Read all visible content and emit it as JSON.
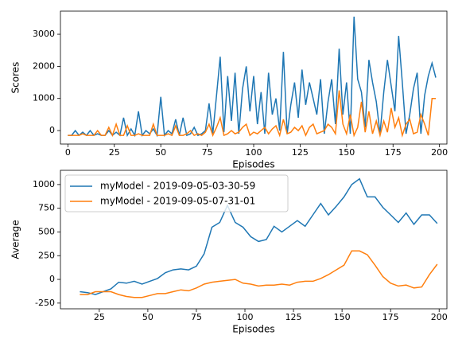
{
  "chart_data": [
    {
      "type": "line",
      "xlabel": "Episodes",
      "ylabel": "Scores",
      "xlim": [
        -4,
        204
      ],
      "ylim": [
        -420,
        3720
      ],
      "xticks": [
        0,
        25,
        50,
        75,
        100,
        125,
        150,
        175,
        200
      ],
      "yticks": [
        0,
        1000,
        2000,
        3000
      ],
      "x": [
        0,
        2,
        4,
        6,
        8,
        10,
        12,
        14,
        16,
        18,
        20,
        22,
        24,
        26,
        28,
        30,
        32,
        34,
        36,
        38,
        40,
        42,
        44,
        46,
        48,
        50,
        52,
        54,
        56,
        58,
        60,
        62,
        64,
        66,
        68,
        70,
        72,
        74,
        76,
        78,
        80,
        82,
        84,
        86,
        88,
        90,
        92,
        94,
        96,
        98,
        100,
        102,
        104,
        106,
        108,
        110,
        112,
        114,
        116,
        118,
        120,
        122,
        124,
        126,
        128,
        130,
        132,
        134,
        136,
        138,
        140,
        142,
        144,
        146,
        148,
        150,
        152,
        154,
        156,
        158,
        160,
        162,
        164,
        166,
        168,
        170,
        172,
        174,
        176,
        178,
        180,
        182,
        184,
        186,
        188,
        190,
        192,
        194,
        196,
        198
      ],
      "series": [
        {
          "color": "#1f77b4",
          "values": [
            -150,
            -150,
            0,
            -150,
            -50,
            -150,
            0,
            -150,
            -100,
            -150,
            -150,
            0,
            -150,
            -50,
            -150,
            400,
            -150,
            50,
            -150,
            600,
            -150,
            0,
            -100,
            50,
            -150,
            1050,
            -150,
            0,
            -100,
            350,
            -150,
            400,
            -150,
            -100,
            100,
            -150,
            -100,
            0,
            850,
            -100,
            1100,
            2300,
            -50,
            1700,
            300,
            1800,
            -100,
            1300,
            2000,
            600,
            1700,
            200,
            1200,
            -100,
            1800,
            500,
            1000,
            0,
            2450,
            -100,
            800,
            1500,
            400,
            1900,
            800,
            1500,
            1000,
            500,
            1600,
            -100,
            900,
            1600,
            200,
            2550,
            500,
            1500,
            -100,
            3550,
            1600,
            1200,
            100,
            2200,
            1500,
            900,
            -100,
            1200,
            2200,
            1400,
            600,
            2950,
            1500,
            -100,
            500,
            1300,
            1800,
            -100,
            1100,
            1700,
            2100,
            1650
          ]
        },
        {
          "color": "#ff7f0e",
          "values": [
            -150,
            -150,
            -150,
            -150,
            -100,
            -150,
            -150,
            -150,
            0,
            -150,
            -150,
            100,
            -150,
            200,
            -150,
            -150,
            150,
            -150,
            -150,
            -100,
            -150,
            -150,
            -150,
            200,
            -150,
            -150,
            -150,
            -100,
            -150,
            150,
            -150,
            -150,
            -100,
            0,
            -150,
            -100,
            -150,
            -50,
            200,
            -150,
            100,
            400,
            -150,
            -100,
            0,
            -100,
            -50,
            100,
            200,
            -150,
            -50,
            -100,
            0,
            100,
            -100,
            50,
            150,
            -150,
            350,
            -100,
            -50,
            100,
            0,
            150,
            -150,
            100,
            200,
            -100,
            -50,
            0,
            200,
            100,
            -100,
            1250,
            200,
            -100,
            500,
            -150,
            100,
            900,
            -50,
            600,
            -100,
            300,
            -150,
            300,
            -50,
            700,
            100,
            400,
            -150,
            200,
            350,
            -100,
            -50,
            500,
            200,
            -150,
            1000,
            1000
          ]
        }
      ]
    },
    {
      "type": "line",
      "xlabel": "Episodes",
      "ylabel": "Average",
      "xlim": [
        5,
        204
      ],
      "ylim": [
        -310,
        1150
      ],
      "xticks": [
        25,
        50,
        75,
        100,
        125,
        150,
        175,
        200
      ],
      "yticks": [
        -250,
        0,
        250,
        500,
        750,
        1000
      ],
      "legend": "upper left",
      "x": [
        15,
        19,
        23,
        27,
        31,
        35,
        39,
        43,
        47,
        51,
        55,
        59,
        63,
        67,
        71,
        75,
        79,
        83,
        87,
        91,
        95,
        99,
        103,
        107,
        111,
        115,
        119,
        123,
        127,
        131,
        135,
        139,
        143,
        147,
        151,
        155,
        159,
        163,
        167,
        171,
        175,
        179,
        183,
        187,
        191,
        195,
        199
      ],
      "series": [
        {
          "name": "myModel - 2019-09-05-03-30-59",
          "color": "#1f77b4",
          "values": [
            -130,
            -140,
            -160,
            -130,
            -100,
            -30,
            -40,
            -20,
            -50,
            -20,
            10,
            70,
            100,
            110,
            100,
            140,
            270,
            550,
            600,
            780,
            600,
            550,
            450,
            400,
            420,
            560,
            500,
            560,
            620,
            560,
            680,
            800,
            680,
            770,
            870,
            1000,
            1060,
            870,
            870,
            760,
            680,
            600,
            700,
            580,
            680,
            680,
            590
          ]
        },
        {
          "name": "myModel - 2019-09-05-07-31-01",
          "color": "#ff7f0e",
          "values": [
            -160,
            -160,
            -130,
            -130,
            -130,
            -160,
            -180,
            -190,
            -190,
            -170,
            -150,
            -150,
            -130,
            -110,
            -120,
            -90,
            -50,
            -30,
            -20,
            -10,
            0,
            -40,
            -50,
            -70,
            -60,
            -60,
            -50,
            -60,
            -30,
            -20,
            -20,
            10,
            50,
            100,
            150,
            300,
            300,
            260,
            150,
            30,
            -40,
            -70,
            -60,
            -90,
            -80,
            50,
            160
          ]
        }
      ]
    }
  ]
}
